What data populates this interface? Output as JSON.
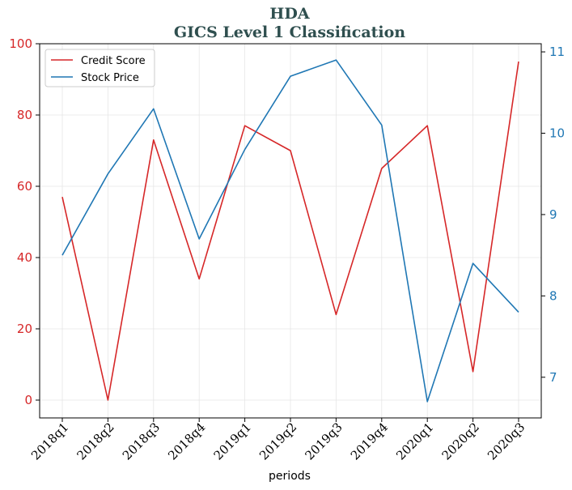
{
  "chart_data": {
    "type": "line",
    "title_line1": "HDA",
    "title_line2": "GICS Level 1 Classification",
    "xlabel": "periods",
    "categories": [
      "2018q1",
      "2018q2",
      "2018q3",
      "2018q4",
      "2019q1",
      "2019q2",
      "2019q3",
      "2019q4",
      "2020q1",
      "2020q2",
      "2020q3"
    ],
    "series": [
      {
        "name": "Credit Score",
        "axis": "left",
        "color": "#d62728",
        "values": [
          57,
          0,
          73,
          34,
          77,
          70,
          24,
          65,
          77,
          8,
          95
        ]
      },
      {
        "name": "Stock Price",
        "axis": "right",
        "color": "#1f77b4",
        "values": [
          8.5,
          9.5,
          10.3,
          8.7,
          9.8,
          10.7,
          10.9,
          10.1,
          6.7,
          8.4,
          7.8
        ]
      }
    ],
    "left_axis": {
      "ylim": [
        -5,
        100
      ],
      "ticks": [
        0,
        20,
        40,
        60,
        80,
        100
      ],
      "color": "#d62728"
    },
    "right_axis": {
      "ylim": [
        6.5,
        11.1
      ],
      "ticks": [
        7,
        8,
        9,
        10,
        11
      ],
      "color": "#1f77b4"
    },
    "grid": true,
    "legend_position": "top-left"
  }
}
